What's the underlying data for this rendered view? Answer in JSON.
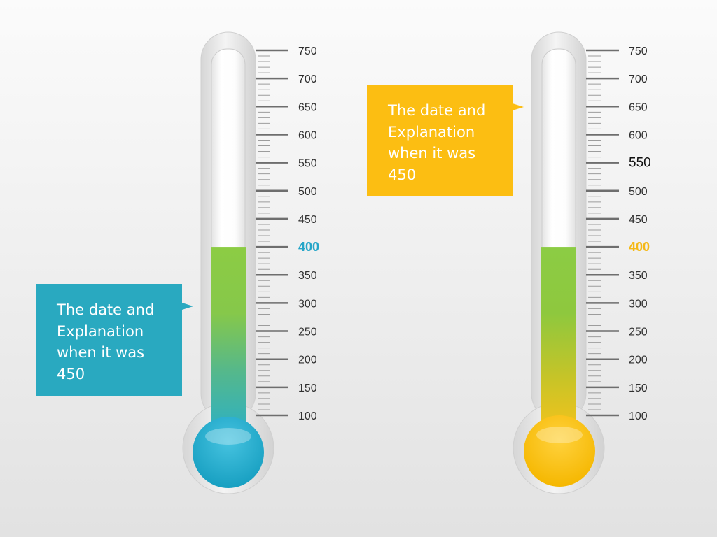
{
  "chart_data": [
    {
      "type": "thermometer",
      "scale": {
        "min": 100,
        "max": 750,
        "step": 50,
        "tick_labels": [
          "750",
          "700",
          "650",
          "600",
          "550",
          "500",
          "450",
          "400",
          "350",
          "300",
          "250",
          "200",
          "150",
          "100"
        ],
        "minor_ticks_per_step": 5
      },
      "value": 400,
      "highlight_label": "400",
      "colors": {
        "bulb": "#1fa8c9",
        "fill_top": "#8ccc44",
        "fill_bottom": "#2bb0c6",
        "highlight": "#25a5c8",
        "callout": "#29a9c0"
      },
      "callout": {
        "lines": [
          "The date and",
          "Explanation",
          "when it was",
          "450"
        ]
      }
    },
    {
      "type": "thermometer",
      "scale": {
        "min": 100,
        "max": 750,
        "step": 50,
        "tick_labels": [
          "750",
          "700",
          "650",
          "600",
          "550",
          "500",
          "450",
          "400",
          "350",
          "300",
          "250",
          "200",
          "150",
          "100"
        ],
        "minor_ticks_per_step": 5
      },
      "value": 400,
      "highlight_label": "400",
      "emphasized_label": "550",
      "colors": {
        "bulb": "#fcc20f",
        "fill_top": "#8ccc44",
        "fill_bottom": "#f7c21b",
        "highlight": "#f5b814",
        "callout": "#fcbe12"
      },
      "callout": {
        "lines": [
          "The date and",
          "Explanation",
          "when it was",
          "450"
        ]
      }
    }
  ]
}
